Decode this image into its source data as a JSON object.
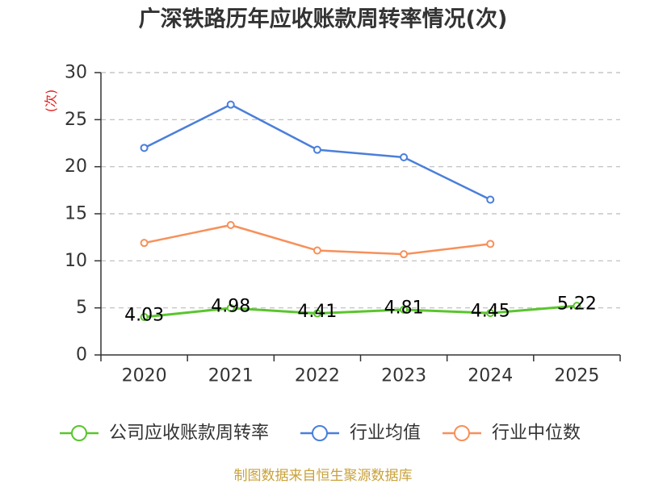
{
  "chart_data": {
    "type": "line",
    "title": "广深铁路历年应收账款周转率情况(次)",
    "xlabel": "",
    "ylabel": "(次)",
    "categories": [
      "2020",
      "2021",
      "2022",
      "2023",
      "2024",
      "2025"
    ],
    "ylim": [
      0,
      30
    ],
    "yticks": [
      0,
      5,
      10,
      15,
      20,
      25,
      30
    ],
    "grid": true,
    "legend_position": "bottom",
    "series": [
      {
        "name": "公司应收账款周转率",
        "color": "#5ac52d",
        "values": [
          4.03,
          4.98,
          4.41,
          4.81,
          4.45,
          5.22
        ],
        "show_labels": true
      },
      {
        "name": "行业均值",
        "color": "#4a7fdb",
        "values": [
          22.0,
          26.6,
          21.8,
          21.0,
          16.5,
          null
        ],
        "show_labels": false
      },
      {
        "name": "行业中位数",
        "color": "#f7905a",
        "values": [
          11.9,
          13.8,
          11.1,
          10.7,
          11.8,
          null
        ],
        "show_labels": false
      }
    ]
  },
  "source_note": "制图数据来自恒生聚源数据库"
}
